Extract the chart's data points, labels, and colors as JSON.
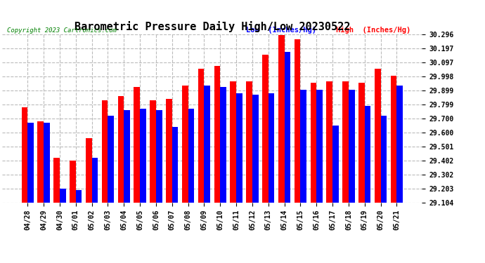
{
  "title": "Barometric Pressure Daily High/Low 20230522",
  "copyright": "Copyright 2023 Cartronics.com",
  "legend_low": "Low  (Inches/Hg)",
  "legend_high": "High  (Inches/Hg)",
  "dates": [
    "04/28",
    "04/29",
    "04/30",
    "05/01",
    "05/02",
    "05/03",
    "05/04",
    "05/05",
    "05/06",
    "05/07",
    "05/08",
    "05/09",
    "05/10",
    "05/11",
    "05/12",
    "05/13",
    "05/14",
    "05/15",
    "05/16",
    "05/17",
    "05/18",
    "05/19",
    "05/20",
    "05/21"
  ],
  "low_values": [
    29.67,
    29.67,
    29.2,
    29.19,
    29.42,
    29.72,
    29.76,
    29.77,
    29.76,
    29.64,
    29.77,
    29.93,
    29.92,
    29.88,
    29.87,
    29.88,
    30.17,
    29.9,
    29.9,
    29.65,
    29.9,
    29.79,
    29.72,
    29.93
  ],
  "high_values": [
    29.78,
    29.68,
    29.42,
    29.4,
    29.56,
    29.83,
    29.86,
    29.92,
    29.83,
    29.84,
    29.93,
    30.05,
    30.07,
    29.96,
    29.96,
    30.15,
    30.29,
    30.26,
    29.95,
    29.96,
    29.96,
    29.95,
    30.05,
    30.0
  ],
  "bar_color_low": "#0000ff",
  "bar_color_high": "#ff0000",
  "ymin": 29.104,
  "ymax": 30.296,
  "yticks": [
    29.104,
    29.203,
    29.302,
    29.402,
    29.501,
    29.6,
    29.7,
    29.799,
    29.899,
    29.998,
    30.097,
    30.197,
    30.296
  ],
  "background_color": "#ffffff",
  "grid_color": "#bbbbbb",
  "title_fontsize": 11,
  "tick_fontsize": 7,
  "bar_width": 0.38
}
